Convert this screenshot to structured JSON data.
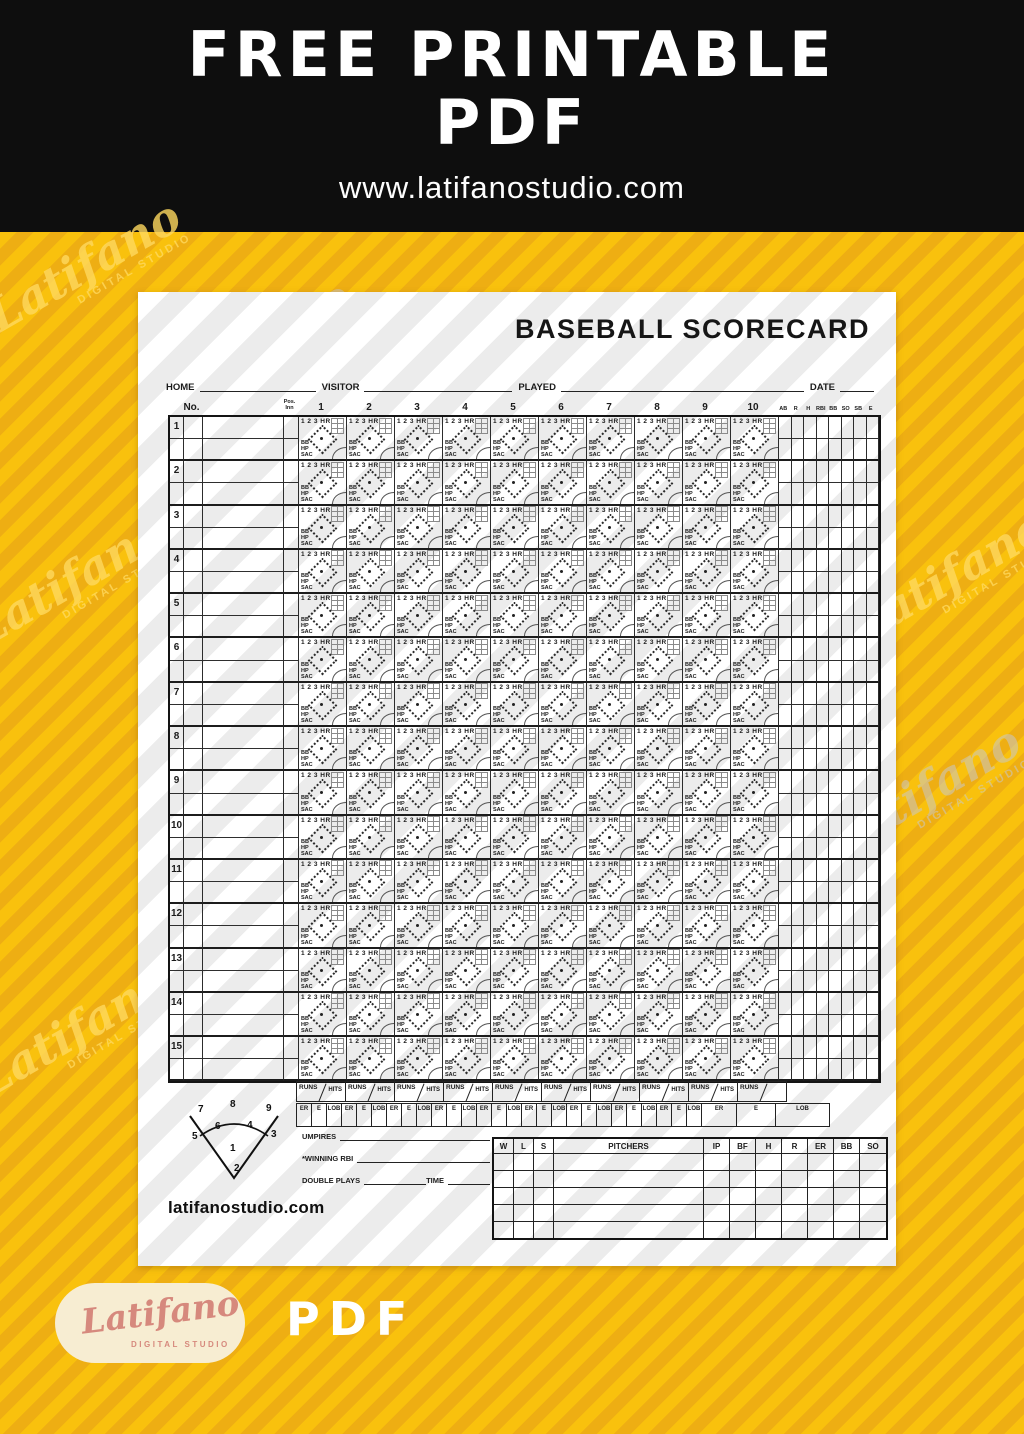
{
  "banner": {
    "line1": "FREE PRINTABLE",
    "line2": "PDF",
    "url": "www.latifanostudio.com"
  },
  "colors": {
    "banner_bg": "#0E0E0E",
    "yellow_bg": "#F9C10D",
    "yellow_stripe": "#EEAE13",
    "paper": "#FFFFFF",
    "paper_stripe": "#ECECEC",
    "ink": "#1B1B1B",
    "logo_pill": "#F7EDD2",
    "logo_text": "#D6897D"
  },
  "scorecard": {
    "title": "BASEBALL SCORECARD",
    "meta": [
      {
        "label": "HOME"
      },
      {
        "label": "VISITOR"
      },
      {
        "label": "PLAYED"
      },
      {
        "label": "DATE"
      }
    ],
    "no_label": "No.",
    "pos_label": "Pos.",
    "inn_label": "Inn",
    "innings": [
      "1",
      "2",
      "3",
      "4",
      "5",
      "6",
      "7",
      "8",
      "9",
      "10"
    ],
    "stat_cols": [
      "AB",
      "R",
      "H",
      "RBI",
      "BB",
      "SO",
      "SB",
      "E"
    ],
    "player_rows": [
      "1",
      "2",
      "3",
      "4",
      "5",
      "6",
      "7",
      "8",
      "9",
      "10",
      "11",
      "12",
      "13",
      "14",
      "15"
    ],
    "cell": {
      "hit_line": "1 2 3 HR",
      "on_base": [
        "BB",
        "HP",
        "SAC"
      ]
    },
    "runs_label": "RUNS",
    "hits_label": "HITS",
    "inning_totals": [
      "ER",
      "E",
      "LOB"
    ],
    "diamond_positions": {
      "p7": "7",
      "p8": "8",
      "p9": "9",
      "p5": "5",
      "p6": "6",
      "p4": "4",
      "p3": "3",
      "p1": "1",
      "p2": "2"
    },
    "footer": {
      "umpires": "UMPIRES",
      "winning_rbi": "*WINNING RBI",
      "double_plays": "DOUBLE PLAYS",
      "time": "TIME",
      "website": "latifanostudio.com"
    },
    "pitcher_table": {
      "result_cols": [
        "W",
        "L",
        "S"
      ],
      "name_col": "PITCHERS",
      "stat_cols": [
        "IP",
        "BF",
        "H",
        "R",
        "ER",
        "BB",
        "SO"
      ],
      "empty_rows": 5
    }
  },
  "branding": {
    "watermark": "Latifano",
    "watermark_sub": "DIGITAL STUDIO",
    "logo_name": "Latifano",
    "logo_sub": "DIGITAL STUDIO",
    "pdf_label": "PDF"
  }
}
